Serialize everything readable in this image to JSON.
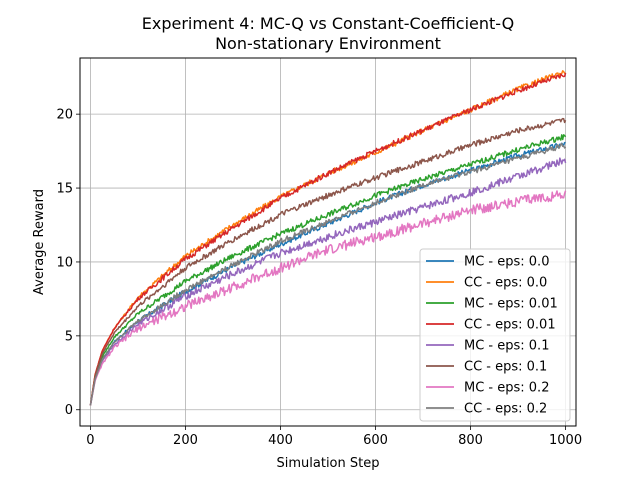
{
  "chart_data": {
    "type": "line",
    "title_line1": "Experiment 4: MC-Q vs Constant-Coefficient-Q",
    "title_line2": "Non-stationary Environment",
    "xlabel": "Simulation Step",
    "ylabel": "Average Reward",
    "xlim": [
      -22,
      1022
    ],
    "ylim": [
      -1.1,
      23.8
    ],
    "xticks": [
      0,
      200,
      400,
      600,
      800,
      1000
    ],
    "yticks": [
      0,
      5,
      10,
      15,
      20
    ],
    "grid": true,
    "legend_position": "lower-right",
    "series": [
      {
        "name": "MC - eps: 0.0",
        "color": "#1f77b4",
        "x": [
          0,
          10,
          25,
          50,
          100,
          200,
          300,
          400,
          500,
          600,
          700,
          800,
          900,
          1000
        ],
        "y": [
          0.3,
          2.2,
          3.4,
          4.6,
          6.0,
          8.0,
          9.7,
          11.2,
          12.6,
          14.0,
          15.2,
          16.2,
          17.2,
          18.0
        ]
      },
      {
        "name": "CC - eps: 0.0",
        "color": "#ff7f0e",
        "x": [
          0,
          10,
          25,
          50,
          100,
          200,
          300,
          400,
          500,
          600,
          700,
          800,
          900,
          1000
        ],
        "y": [
          0.3,
          2.4,
          4.0,
          5.5,
          7.6,
          10.4,
          12.5,
          14.4,
          16.0,
          17.4,
          18.9,
          20.3,
          21.7,
          22.9
        ]
      },
      {
        "name": "MC - eps: 0.01",
        "color": "#2ca02c",
        "x": [
          0,
          10,
          25,
          50,
          100,
          200,
          300,
          400,
          500,
          600,
          700,
          800,
          900,
          1000
        ],
        "y": [
          0.3,
          2.3,
          3.6,
          4.9,
          6.5,
          8.7,
          10.4,
          11.9,
          13.2,
          14.5,
          15.6,
          16.6,
          17.6,
          18.5
        ]
      },
      {
        "name": "CC - eps: 0.01",
        "color": "#d62728",
        "x": [
          0,
          10,
          25,
          50,
          100,
          200,
          300,
          400,
          500,
          600,
          700,
          800,
          900,
          1000
        ],
        "y": [
          0.3,
          2.4,
          4.0,
          5.5,
          7.5,
          10.2,
          12.3,
          14.3,
          16.0,
          17.5,
          18.9,
          20.3,
          21.6,
          22.7
        ]
      },
      {
        "name": "MC - eps: 0.1",
        "color": "#9467bd",
        "x": [
          0,
          10,
          25,
          50,
          100,
          200,
          300,
          400,
          500,
          600,
          700,
          800,
          900,
          1000
        ],
        "y": [
          0.3,
          2.1,
          3.3,
          4.4,
          5.8,
          7.7,
          9.2,
          10.6,
          11.7,
          12.7,
          13.7,
          14.7,
          15.8,
          16.9
        ]
      },
      {
        "name": "CC - eps: 0.1",
        "color": "#8c564b",
        "x": [
          0,
          10,
          25,
          50,
          100,
          200,
          300,
          400,
          500,
          600,
          700,
          800,
          900,
          1000
        ],
        "y": [
          0.3,
          2.3,
          3.8,
          5.2,
          7.0,
          9.6,
          11.5,
          13.2,
          14.5,
          15.7,
          16.8,
          17.9,
          18.9,
          19.6
        ]
      },
      {
        "name": "MC - eps: 0.2",
        "color": "#e377c2",
        "x": [
          0,
          10,
          25,
          50,
          100,
          200,
          300,
          400,
          500,
          600,
          700,
          800,
          900,
          1000
        ],
        "y": [
          0.3,
          2.0,
          3.1,
          4.2,
          5.5,
          7.0,
          8.3,
          9.6,
          10.8,
          11.7,
          12.6,
          13.5,
          14.1,
          14.6
        ]
      },
      {
        "name": "CC - eps: 0.2",
        "color": "#7f7f7f",
        "x": [
          0,
          10,
          25,
          50,
          100,
          200,
          300,
          400,
          500,
          600,
          700,
          800,
          900,
          1000
        ],
        "y": [
          0.3,
          2.1,
          3.4,
          4.6,
          6.0,
          8.1,
          9.8,
          11.4,
          12.7,
          14.0,
          15.2,
          16.1,
          17.0,
          17.9
        ]
      }
    ]
  }
}
